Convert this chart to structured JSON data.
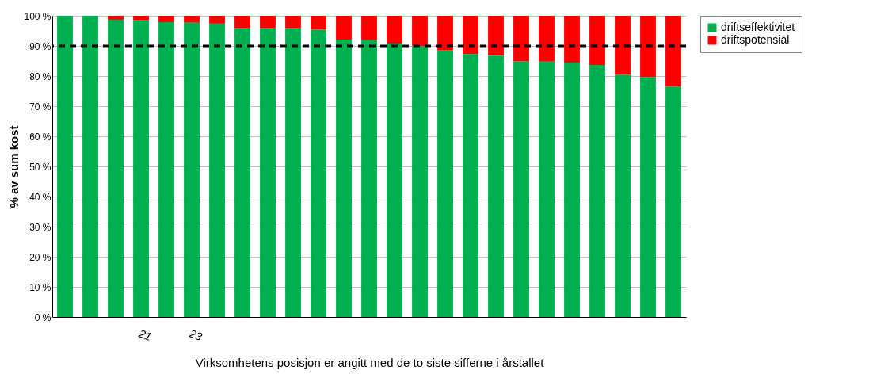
{
  "chart_data": {
    "type": "bar",
    "stacked": true,
    "ylabel": "% av sum kost",
    "xlabel": "Virksomhetens posisjon er angitt med de to siste sifferne i årstallet",
    "categories": [
      null,
      null,
      null,
      "21",
      null,
      "23",
      null,
      null,
      null,
      null,
      null,
      null,
      null,
      null,
      null,
      null,
      null,
      null,
      null,
      null,
      null,
      null,
      null,
      null,
      null
    ],
    "series": [
      {
        "name": "driftseffektivitet",
        "color": "#00b050",
        "values": [
          100,
          100,
          98.7,
          98.5,
          97.9,
          97.7,
          97.4,
          95.9,
          95.9,
          95.9,
          95.4,
          92.1,
          92,
          90.8,
          89.9,
          88.5,
          87.3,
          86.8,
          84.9,
          84.8,
          84.5,
          83.7,
          80.4,
          79.7,
          76.5
        ]
      },
      {
        "name": "driftspotensial",
        "color": "#ff0000",
        "values": [
          0,
          0,
          1.3,
          1.5,
          2.1,
          2.3,
          2.6,
          4.1,
          4.1,
          4.1,
          4.6,
          7.9,
          8,
          9.2,
          10.1,
          11.5,
          12.7,
          13.2,
          15.1,
          15.2,
          15.5,
          16.3,
          19.6,
          20.3,
          23.5
        ]
      }
    ],
    "ylim": [
      0,
      100
    ],
    "yticks": [
      {
        "value": 0,
        "label": "0 %"
      },
      {
        "value": 10,
        "label": "10 %"
      },
      {
        "value": 20,
        "label": "20 %"
      },
      {
        "value": 30,
        "label": "30 %"
      },
      {
        "value": 40,
        "label": "40 %"
      },
      {
        "value": 50,
        "label": "50 %"
      },
      {
        "value": 60,
        "label": "60 %"
      },
      {
        "value": 70,
        "label": "70 %"
      },
      {
        "value": 80,
        "label": "80 %"
      },
      {
        "value": 90,
        "label": "90 %"
      },
      {
        "value": 100,
        "label": "100 %"
      }
    ],
    "grid": "y",
    "legend": "right",
    "ref_lines": [
      {
        "axis": "y",
        "value": 90,
        "color": "#000000",
        "line_style": "dashed"
      }
    ]
  }
}
